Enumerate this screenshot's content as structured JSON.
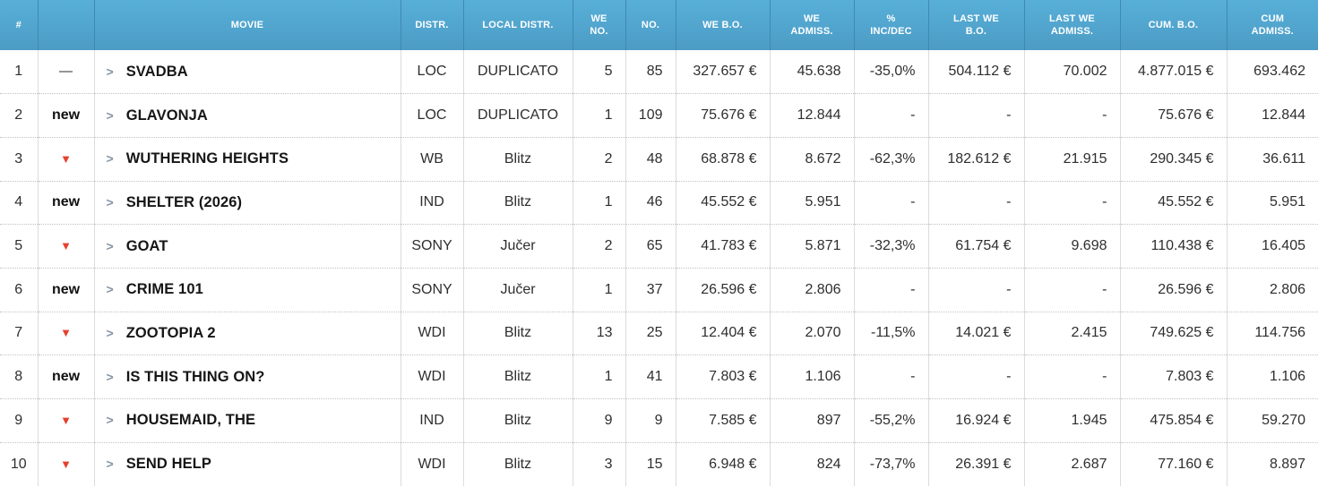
{
  "colors": {
    "header_top": "#57AFD8",
    "header_bottom": "#4C9CC5",
    "header_text": "#FFFFFF",
    "header_divider": "#3F89B1",
    "row_text": "#2E2E2E",
    "movie_text": "#161616",
    "grid_line": "#DCDCDC",
    "dotted_line": "#C2C2C2",
    "down_arrow": "#E5402D",
    "new_text": "#111111",
    "chevron": "#8494A2"
  },
  "table": {
    "columns": [
      {
        "key": "rank",
        "label": "#"
      },
      {
        "key": "trend",
        "label": ""
      },
      {
        "key": "movie",
        "label": "MOVIE"
      },
      {
        "key": "distr",
        "label": "DISTR."
      },
      {
        "key": "local_distr",
        "label": "LOCAL DISTR."
      },
      {
        "key": "we_no",
        "label": "WE\nNO."
      },
      {
        "key": "no",
        "label": "NO."
      },
      {
        "key": "we_bo",
        "label": "WE B.O."
      },
      {
        "key": "we_admiss",
        "label": "WE\nADMISS."
      },
      {
        "key": "pct_inc_dec",
        "label": "%\nINC/DEC"
      },
      {
        "key": "last_we_bo",
        "label": "LAST WE\nB.O."
      },
      {
        "key": "last_we_admiss",
        "label": "LAST WE\nADMISS."
      },
      {
        "key": "cum_bo",
        "label": "CUM. B.O."
      },
      {
        "key": "cum_admiss",
        "label": "CUM\nADMISS."
      }
    ],
    "trend_glyphs": {
      "same": "—",
      "down": "▼",
      "new": "new"
    },
    "expand_icon": ">",
    "rows": [
      {
        "rank": "1",
        "trend": "same",
        "movie": "SVADBA",
        "distr": "LOC",
        "local_distr": "DUPLICATO",
        "we_no": "5",
        "no": "85",
        "we_bo": "327.657 €",
        "we_admiss": "45.638",
        "pct_inc_dec": "-35,0%",
        "last_we_bo": "504.112 €",
        "last_we_admiss": "70.002",
        "cum_bo": "4.877.015 €",
        "cum_admiss": "693.462"
      },
      {
        "rank": "2",
        "trend": "new",
        "movie": "GLAVONJA",
        "distr": "LOC",
        "local_distr": "DUPLICATO",
        "we_no": "1",
        "no": "109",
        "we_bo": "75.676 €",
        "we_admiss": "12.844",
        "pct_inc_dec": "-",
        "last_we_bo": "-",
        "last_we_admiss": "-",
        "cum_bo": "75.676 €",
        "cum_admiss": "12.844"
      },
      {
        "rank": "3",
        "trend": "down",
        "movie": "WUTHERING HEIGHTS",
        "distr": "WB",
        "local_distr": "Blitz",
        "we_no": "2",
        "no": "48",
        "we_bo": "68.878 €",
        "we_admiss": "8.672",
        "pct_inc_dec": "-62,3%",
        "last_we_bo": "182.612 €",
        "last_we_admiss": "21.915",
        "cum_bo": "290.345 €",
        "cum_admiss": "36.611"
      },
      {
        "rank": "4",
        "trend": "new",
        "movie": "SHELTER (2026)",
        "distr": "IND",
        "local_distr": "Blitz",
        "we_no": "1",
        "no": "46",
        "we_bo": "45.552 €",
        "we_admiss": "5.951",
        "pct_inc_dec": "-",
        "last_we_bo": "-",
        "last_we_admiss": "-",
        "cum_bo": "45.552 €",
        "cum_admiss": "5.951"
      },
      {
        "rank": "5",
        "trend": "down",
        "movie": "GOAT",
        "distr": "SONY",
        "local_distr": "Jučer",
        "we_no": "2",
        "no": "65",
        "we_bo": "41.783 €",
        "we_admiss": "5.871",
        "pct_inc_dec": "-32,3%",
        "last_we_bo": "61.754 €",
        "last_we_admiss": "9.698",
        "cum_bo": "110.438 €",
        "cum_admiss": "16.405"
      },
      {
        "rank": "6",
        "trend": "new",
        "movie": "CRIME 101",
        "distr": "SONY",
        "local_distr": "Jučer",
        "we_no": "1",
        "no": "37",
        "we_bo": "26.596 €",
        "we_admiss": "2.806",
        "pct_inc_dec": "-",
        "last_we_bo": "-",
        "last_we_admiss": "-",
        "cum_bo": "26.596 €",
        "cum_admiss": "2.806"
      },
      {
        "rank": "7",
        "trend": "down",
        "movie": "ZOOTOPIA 2",
        "distr": "WDI",
        "local_distr": "Blitz",
        "we_no": "13",
        "no": "25",
        "we_bo": "12.404 €",
        "we_admiss": "2.070",
        "pct_inc_dec": "-11,5%",
        "last_we_bo": "14.021 €",
        "last_we_admiss": "2.415",
        "cum_bo": "749.625 €",
        "cum_admiss": "114.756"
      },
      {
        "rank": "8",
        "trend": "new",
        "movie": "IS THIS THING ON?",
        "distr": "WDI",
        "local_distr": "Blitz",
        "we_no": "1",
        "no": "41",
        "we_bo": "7.803 €",
        "we_admiss": "1.106",
        "pct_inc_dec": "-",
        "last_we_bo": "-",
        "last_we_admiss": "-",
        "cum_bo": "7.803 €",
        "cum_admiss": "1.106"
      },
      {
        "rank": "9",
        "trend": "down",
        "movie": "HOUSEMAID, THE",
        "distr": "IND",
        "local_distr": "Blitz",
        "we_no": "9",
        "no": "9",
        "we_bo": "7.585 €",
        "we_admiss": "897",
        "pct_inc_dec": "-55,2%",
        "last_we_bo": "16.924 €",
        "last_we_admiss": "1.945",
        "cum_bo": "475.854 €",
        "cum_admiss": "59.270"
      },
      {
        "rank": "10",
        "trend": "down",
        "movie": "SEND HELP",
        "distr": "WDI",
        "local_distr": "Blitz",
        "we_no": "3",
        "no": "15",
        "we_bo": "6.948 €",
        "we_admiss": "824",
        "pct_inc_dec": "-73,7%",
        "last_we_bo": "26.391 €",
        "last_we_admiss": "2.687",
        "cum_bo": "77.160 €",
        "cum_admiss": "8.897"
      }
    ]
  }
}
